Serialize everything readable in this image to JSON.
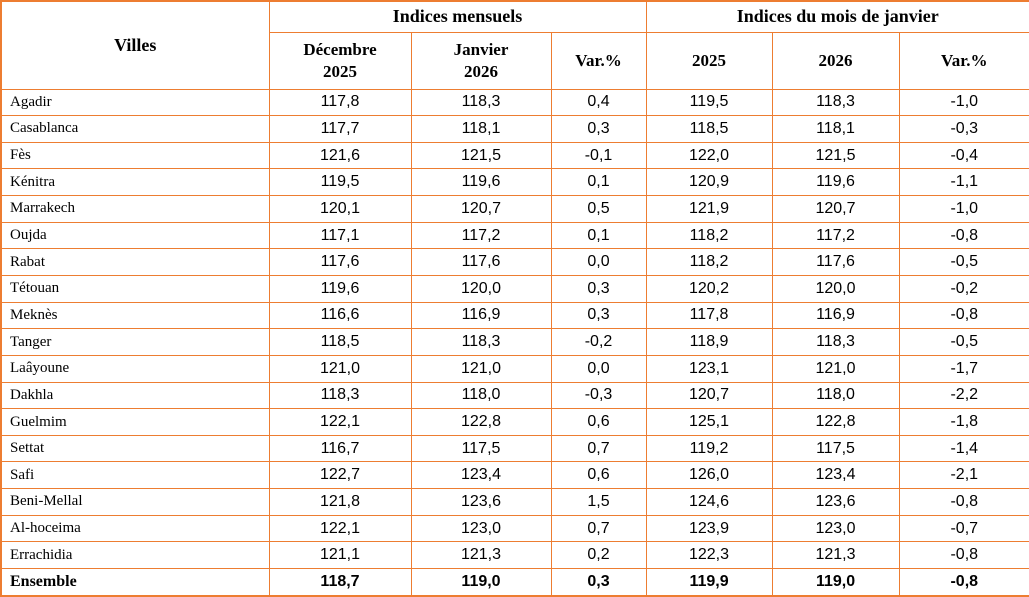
{
  "table": {
    "border_color": "#ED7D31",
    "text_color": "#000000",
    "header": {
      "villes": "Villes",
      "group_monthly": "Indices mensuels",
      "group_january": "Indices du mois de janvier",
      "sub": [
        "Décembre\n2025",
        "Janvier\n2026",
        "Var.%",
        "2025",
        "2026",
        "Var.%"
      ]
    },
    "rows": [
      {
        "city": "Agadir",
        "values": [
          "117,8",
          "118,3",
          "0,4",
          "119,5",
          "118,3",
          "-1,0"
        ],
        "bold": false
      },
      {
        "city": "Casablanca",
        "values": [
          "117,7",
          "118,1",
          "0,3",
          "118,5",
          "118,1",
          "-0,3"
        ],
        "bold": false
      },
      {
        "city": "Fès",
        "values": [
          "121,6",
          "121,5",
          "-0,1",
          "122,0",
          "121,5",
          "-0,4"
        ],
        "bold": false
      },
      {
        "city": "Kénitra",
        "values": [
          "119,5",
          "119,6",
          "0,1",
          "120,9",
          "119,6",
          "-1,1"
        ],
        "bold": false
      },
      {
        "city": "Marrakech",
        "values": [
          "120,1",
          "120,7",
          "0,5",
          "121,9",
          "120,7",
          "-1,0"
        ],
        "bold": false
      },
      {
        "city": "Oujda",
        "values": [
          "117,1",
          "117,2",
          "0,1",
          "118,2",
          "117,2",
          "-0,8"
        ],
        "bold": false
      },
      {
        "city": "Rabat",
        "values": [
          "117,6",
          "117,6",
          "0,0",
          "118,2",
          "117,6",
          "-0,5"
        ],
        "bold": false
      },
      {
        "city": "Tétouan",
        "values": [
          "119,6",
          "120,0",
          "0,3",
          "120,2",
          "120,0",
          "-0,2"
        ],
        "bold": false
      },
      {
        "city": "Meknès",
        "values": [
          "116,6",
          "116,9",
          "0,3",
          "117,8",
          "116,9",
          "-0,8"
        ],
        "bold": false
      },
      {
        "city": "Tanger",
        "values": [
          "118,5",
          "118,3",
          "-0,2",
          "118,9",
          "118,3",
          "-0,5"
        ],
        "bold": false
      },
      {
        "city": "Laâyoune",
        "values": [
          "121,0",
          "121,0",
          "0,0",
          "123,1",
          "121,0",
          "-1,7"
        ],
        "bold": false
      },
      {
        "city": "Dakhla",
        "values": [
          "118,3",
          "118,0",
          "-0,3",
          "120,7",
          "118,0",
          "-2,2"
        ],
        "bold": false
      },
      {
        "city": "Guelmim",
        "values": [
          "122,1",
          "122,8",
          "0,6",
          "125,1",
          "122,8",
          "-1,8"
        ],
        "bold": false
      },
      {
        "city": "Settat",
        "values": [
          "116,7",
          "117,5",
          "0,7",
          "119,2",
          "117,5",
          "-1,4"
        ],
        "bold": false
      },
      {
        "city": "Safi",
        "values": [
          "122,7",
          "123,4",
          "0,6",
          "126,0",
          "123,4",
          "-2,1"
        ],
        "bold": false
      },
      {
        "city": "Beni-Mellal",
        "values": [
          "121,8",
          "123,6",
          "1,5",
          "124,6",
          "123,6",
          "-0,8"
        ],
        "bold": false
      },
      {
        "city": "Al-hoceima",
        "values": [
          "122,1",
          "123,0",
          "0,7",
          "123,9",
          "123,0",
          "-0,7"
        ],
        "bold": false
      },
      {
        "city": "Errachidia",
        "values": [
          "121,1",
          "121,3",
          "0,2",
          "122,3",
          "121,3",
          "-0,8"
        ],
        "bold": false
      },
      {
        "city": "Ensemble",
        "values": [
          "118,7",
          "119,0",
          "0,3",
          "119,9",
          "119,0",
          "-0,8"
        ],
        "bold": true
      }
    ]
  }
}
